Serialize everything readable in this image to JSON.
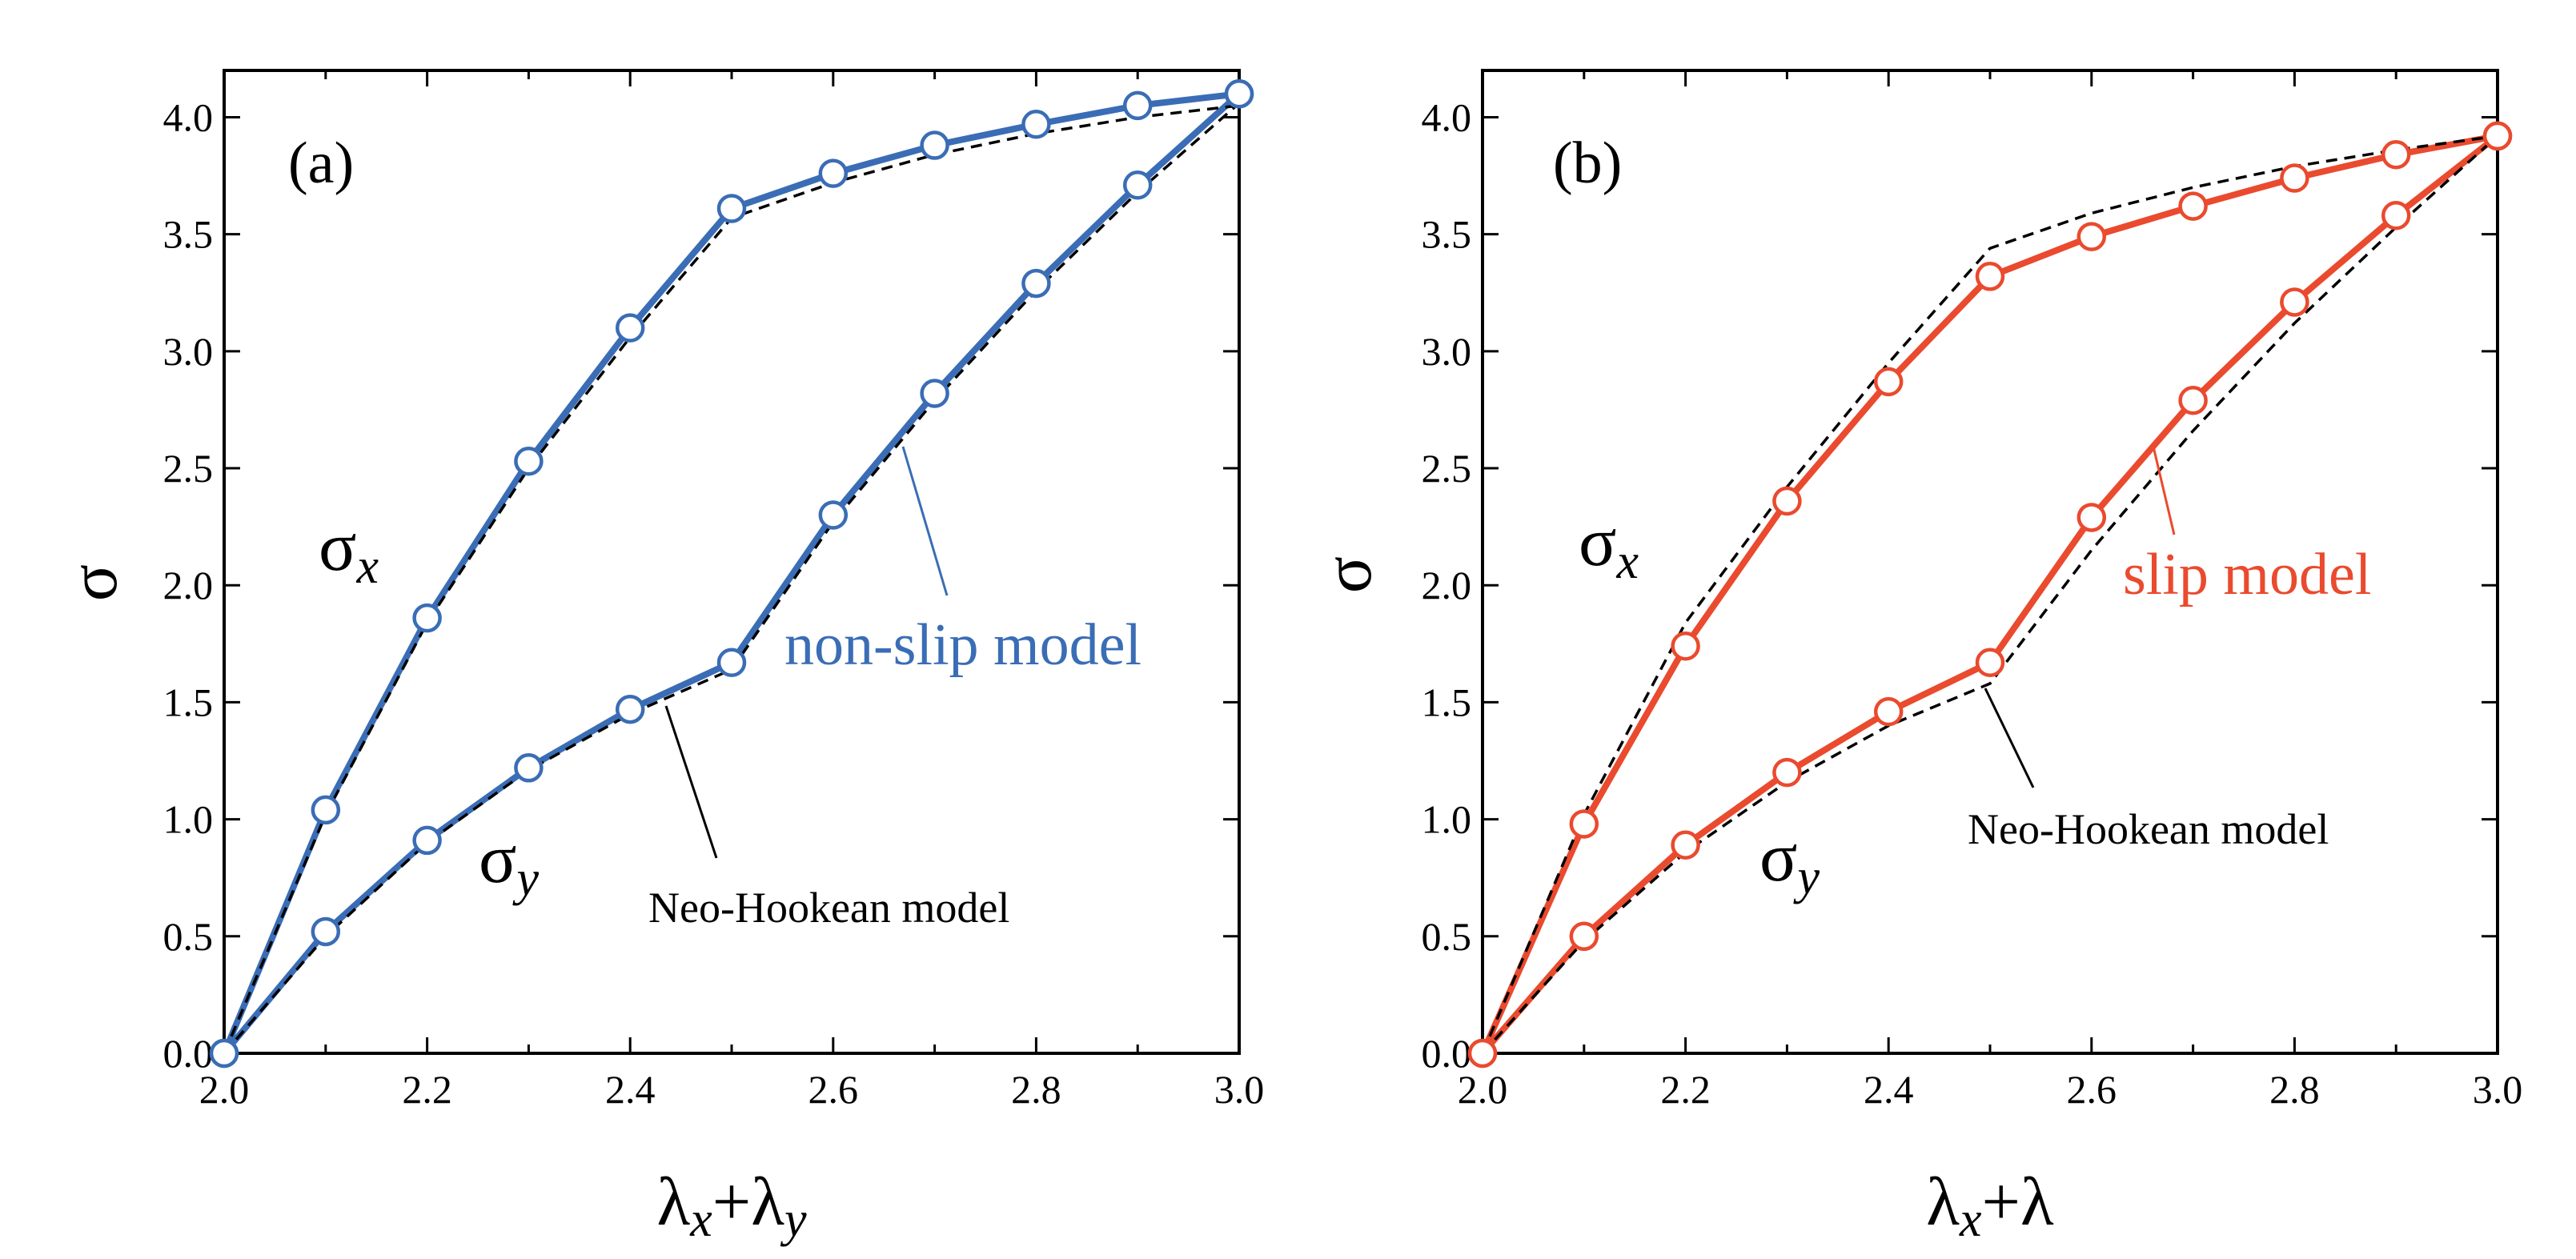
{
  "colors": {
    "blue": "#3a6db5",
    "red": "#ea4a2e",
    "black": "#000000"
  },
  "chart_data": [
    {
      "type": "line",
      "panel_label": "(a)",
      "xlabel_main": "λ",
      "xlabel_sub1": "x",
      "xlabel_plus": "+λ",
      "xlabel_sub2": "y",
      "ylabel": "σ",
      "xlim": [
        2.0,
        3.0
      ],
      "ylim": [
        0.0,
        4.2
      ],
      "xticks": [
        "2.0",
        "2.2",
        "2.4",
        "2.6",
        "2.8",
        "3.0"
      ],
      "yticks": [
        "0.0",
        "0.5",
        "1.0",
        "1.5",
        "2.0",
        "2.5",
        "3.0",
        "3.5",
        "4.0"
      ],
      "color": "#3a6db5",
      "series": [
        {
          "name": "σx (non-slip model)",
          "x": [
            2.0,
            2.1,
            2.2,
            2.3,
            2.4,
            2.5,
            2.6,
            2.7,
            2.8,
            2.9,
            3.0
          ],
          "values": [
            0.0,
            1.04,
            1.86,
            2.53,
            3.1,
            3.61,
            3.76,
            3.88,
            3.97,
            4.05,
            4.1
          ]
        },
        {
          "name": "σy (non-slip model)",
          "x": [
            2.0,
            2.1,
            2.2,
            2.3,
            2.4,
            2.5,
            2.6,
            2.7,
            2.8,
            2.9,
            3.0
          ],
          "values": [
            0.0,
            0.52,
            0.91,
            1.22,
            1.47,
            1.67,
            2.3,
            2.82,
            3.29,
            3.71,
            4.1
          ]
        },
        {
          "name": "σx Neo-Hookean",
          "dashed": true,
          "x": [
            2.0,
            2.1,
            2.2,
            2.3,
            2.4,
            2.5,
            2.6,
            2.7,
            2.8,
            2.9,
            3.0
          ],
          "values": [
            0.0,
            1.02,
            1.84,
            2.5,
            3.06,
            3.57,
            3.72,
            3.84,
            3.93,
            4.0,
            4.05
          ]
        },
        {
          "name": "σy Neo-Hookean",
          "dashed": true,
          "x": [
            2.0,
            2.1,
            2.2,
            2.3,
            2.4,
            2.5,
            2.6,
            2.7,
            2.8,
            2.9,
            3.0
          ],
          "values": [
            0.0,
            0.5,
            0.9,
            1.21,
            1.45,
            1.64,
            2.27,
            2.79,
            3.26,
            3.68,
            4.06
          ]
        }
      ],
      "annotations": {
        "sigma_x_main": "σ",
        "sigma_x_sub": "x",
        "sigma_y_main": "σ",
        "sigma_y_sub": "y",
        "model_label": "non-slip model",
        "neo_label": "Neo-Hookean model"
      }
    },
    {
      "type": "line",
      "panel_label": "(b)",
      "xlabel_main": "λ",
      "xlabel_sub1": "x",
      "xlabel_plus": "+λ",
      "xlabel_sub2": "",
      "ylabel": "σ",
      "xlim": [
        2.0,
        3.0
      ],
      "ylim": [
        0.0,
        4.2
      ],
      "xticks": [
        "2.0",
        "2.2",
        "2.4",
        "2.6",
        "2.8",
        "3.0"
      ],
      "yticks": [
        "0.0",
        "0.5",
        "1.0",
        "1.5",
        "2.0",
        "2.5",
        "3.0",
        "3.5",
        "4.0"
      ],
      "color": "#ea4a2e",
      "series": [
        {
          "name": "σx (slip model)",
          "x": [
            2.0,
            2.1,
            2.2,
            2.3,
            2.4,
            2.5,
            2.6,
            2.7,
            2.8,
            2.9,
            3.0
          ],
          "values": [
            0.0,
            0.98,
            1.74,
            2.36,
            2.87,
            3.32,
            3.49,
            3.62,
            3.74,
            3.84,
            3.92
          ]
        },
        {
          "name": "σy (slip model)",
          "x": [
            2.0,
            2.1,
            2.2,
            2.3,
            2.4,
            2.5,
            2.6,
            2.7,
            2.8,
            2.9,
            3.0
          ],
          "values": [
            0.0,
            0.5,
            0.89,
            1.2,
            1.46,
            1.67,
            2.29,
            2.79,
            3.21,
            3.58,
            3.92
          ]
        },
        {
          "name": "σx Neo-Hookean",
          "dashed": true,
          "x": [
            2.0,
            2.1,
            2.2,
            2.3,
            2.4,
            2.5,
            2.6,
            2.7,
            2.8,
            2.9,
            3.0
          ],
          "values": [
            0.0,
            1.02,
            1.84,
            2.42,
            2.95,
            3.44,
            3.59,
            3.7,
            3.79,
            3.86,
            3.92
          ]
        },
        {
          "name": "σy Neo-Hookean",
          "dashed": true,
          "x": [
            2.0,
            2.1,
            2.2,
            2.3,
            2.4,
            2.5,
            2.6,
            2.7,
            2.8,
            2.9,
            3.0
          ],
          "values": [
            0.0,
            0.48,
            0.86,
            1.16,
            1.4,
            1.58,
            2.15,
            2.66,
            3.12,
            3.53,
            3.92
          ]
        }
      ],
      "annotations": {
        "sigma_x_main": "σ",
        "sigma_x_sub": "x",
        "sigma_y_main": "σ",
        "sigma_y_sub": "y",
        "model_label": "slip model",
        "neo_label": "Neo-Hookean model"
      }
    }
  ]
}
